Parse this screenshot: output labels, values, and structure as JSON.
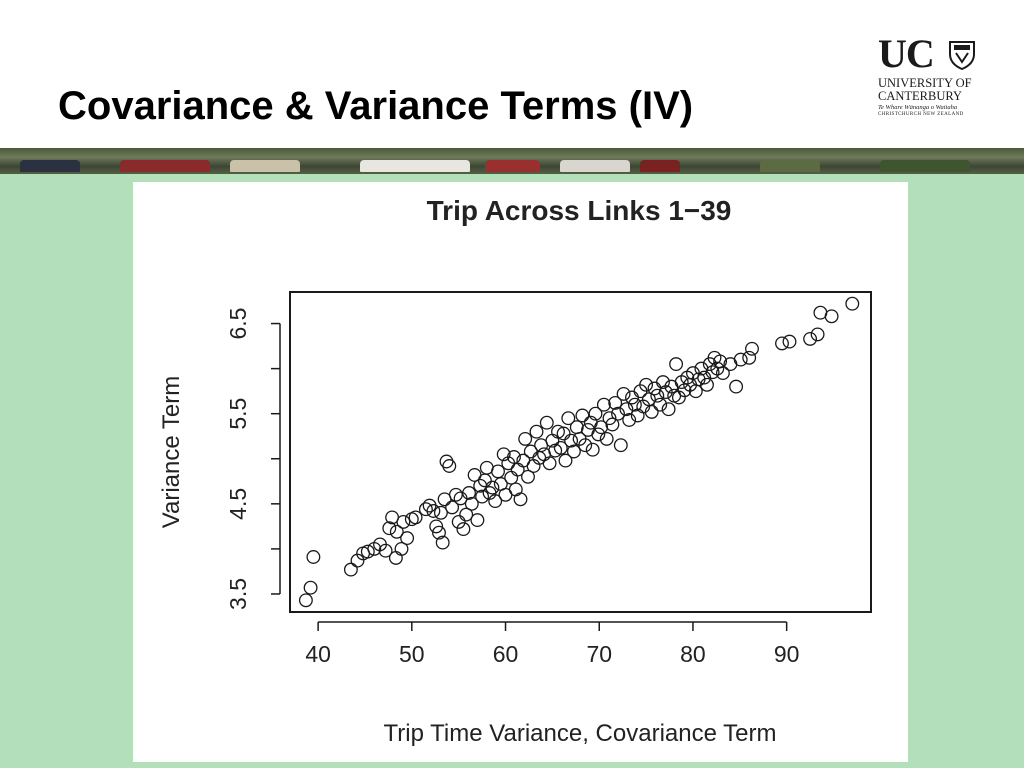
{
  "slide": {
    "title": "Covariance & Variance Terms (IV)"
  },
  "logo": {
    "short": "UC",
    "line1": "UNIVERSITY OF",
    "line2": "CANTERBURY",
    "line3": "Te Whare Wānanga o Waitaha",
    "line4": "CHRISTCHURCH NEW ZEALAND",
    "crest_icon": "university-crest-icon"
  },
  "colors": {
    "panel_background": "#b3dfbb",
    "chart_background": "#ffffff",
    "point_stroke": "#1a1a1a"
  },
  "chart_data": {
    "type": "scatter",
    "title": "Trip Across Links 1−39",
    "xlabel": "Trip Time Variance, Covariance Term",
    "ylabel": "Variance Term",
    "xlim": [
      37,
      99
    ],
    "ylim": [
      3.3,
      6.85
    ],
    "x_ticks": [
      40,
      50,
      60,
      70,
      80,
      90
    ],
    "y_ticks": [
      3.5,
      4,
      4.5,
      5,
      5.5,
      6,
      6.5
    ],
    "y_tick_labels": [
      "3.5",
      "4.5",
      "5.5",
      "6.5"
    ],
    "grid": false,
    "marker": "open-circle",
    "points": [
      [
        38.7,
        3.43
      ],
      [
        39.2,
        3.57
      ],
      [
        39.5,
        3.91
      ],
      [
        43.5,
        3.77
      ],
      [
        44.2,
        3.87
      ],
      [
        44.8,
        3.95
      ],
      [
        45.3,
        3.97
      ],
      [
        46.0,
        4.0
      ],
      [
        46.6,
        4.05
      ],
      [
        47.2,
        3.98
      ],
      [
        47.6,
        4.23
      ],
      [
        47.9,
        4.35
      ],
      [
        48.4,
        4.19
      ],
      [
        48.3,
        3.9
      ],
      [
        48.9,
        4.0
      ],
      [
        49.1,
        4.3
      ],
      [
        49.5,
        4.12
      ],
      [
        50.0,
        4.33
      ],
      [
        50.4,
        4.35
      ],
      [
        51.5,
        4.44
      ],
      [
        51.9,
        4.48
      ],
      [
        52.3,
        4.42
      ],
      [
        52.6,
        4.25
      ],
      [
        52.9,
        4.18
      ],
      [
        53.1,
        4.4
      ],
      [
        53.3,
        4.07
      ],
      [
        53.5,
        4.55
      ],
      [
        53.7,
        4.97
      ],
      [
        54.0,
        4.92
      ],
      [
        54.3,
        4.46
      ],
      [
        54.7,
        4.6
      ],
      [
        55.0,
        4.3
      ],
      [
        55.2,
        4.56
      ],
      [
        55.5,
        4.22
      ],
      [
        55.8,
        4.38
      ],
      [
        56.1,
        4.62
      ],
      [
        56.4,
        4.5
      ],
      [
        56.7,
        4.82
      ],
      [
        57.0,
        4.32
      ],
      [
        57.3,
        4.7
      ],
      [
        57.5,
        4.58
      ],
      [
        57.8,
        4.76
      ],
      [
        58.0,
        4.9
      ],
      [
        58.3,
        4.62
      ],
      [
        58.6,
        4.68
      ],
      [
        58.9,
        4.53
      ],
      [
        59.2,
        4.86
      ],
      [
        59.5,
        4.72
      ],
      [
        59.8,
        5.05
      ],
      [
        60.0,
        4.6
      ],
      [
        60.3,
        4.95
      ],
      [
        60.6,
        4.79
      ],
      [
        60.9,
        5.02
      ],
      [
        61.1,
        4.66
      ],
      [
        61.3,
        4.88
      ],
      [
        61.6,
        4.55
      ],
      [
        61.9,
        4.98
      ],
      [
        62.1,
        5.22
      ],
      [
        62.4,
        4.8
      ],
      [
        62.7,
        5.08
      ],
      [
        63.0,
        4.92
      ],
      [
        63.3,
        5.3
      ],
      [
        63.6,
        5.01
      ],
      [
        63.8,
        5.15
      ],
      [
        64.1,
        5.05
      ],
      [
        64.4,
        5.4
      ],
      [
        64.7,
        4.95
      ],
      [
        65.0,
        5.2
      ],
      [
        65.3,
        5.09
      ],
      [
        65.6,
        5.3
      ],
      [
        65.9,
        5.12
      ],
      [
        66.2,
        5.28
      ],
      [
        66.4,
        4.98
      ],
      [
        66.7,
        5.45
      ],
      [
        67.0,
        5.2
      ],
      [
        67.3,
        5.08
      ],
      [
        67.6,
        5.35
      ],
      [
        67.9,
        5.22
      ],
      [
        68.2,
        5.48
      ],
      [
        68.5,
        5.15
      ],
      [
        68.8,
        5.32
      ],
      [
        69.1,
        5.4
      ],
      [
        69.3,
        5.1
      ],
      [
        69.6,
        5.5
      ],
      [
        69.9,
        5.27
      ],
      [
        70.2,
        5.35
      ],
      [
        70.5,
        5.6
      ],
      [
        70.8,
        5.22
      ],
      [
        71.1,
        5.45
      ],
      [
        71.4,
        5.38
      ],
      [
        71.7,
        5.62
      ],
      [
        72.0,
        5.5
      ],
      [
        72.3,
        5.15
      ],
      [
        72.6,
        5.72
      ],
      [
        72.9,
        5.55
      ],
      [
        73.2,
        5.43
      ],
      [
        73.5,
        5.68
      ],
      [
        73.8,
        5.6
      ],
      [
        74.1,
        5.48
      ],
      [
        74.4,
        5.75
      ],
      [
        74.7,
        5.58
      ],
      [
        75.0,
        5.82
      ],
      [
        75.3,
        5.66
      ],
      [
        75.6,
        5.52
      ],
      [
        75.9,
        5.78
      ],
      [
        76.2,
        5.7
      ],
      [
        76.5,
        5.6
      ],
      [
        76.8,
        5.85
      ],
      [
        77.1,
        5.74
      ],
      [
        77.4,
        5.55
      ],
      [
        77.7,
        5.8
      ],
      [
        78.0,
        5.7
      ],
      [
        78.2,
        6.05
      ],
      [
        78.5,
        5.68
      ],
      [
        78.8,
        5.85
      ],
      [
        79.1,
        5.76
      ],
      [
        79.4,
        5.9
      ],
      [
        79.7,
        5.82
      ],
      [
        80.0,
        5.95
      ],
      [
        80.3,
        5.75
      ],
      [
        80.6,
        5.88
      ],
      [
        80.9,
        6.0
      ],
      [
        81.2,
        5.9
      ],
      [
        81.5,
        5.82
      ],
      [
        81.8,
        6.05
      ],
      [
        82.1,
        5.96
      ],
      [
        82.3,
        6.12
      ],
      [
        82.6,
        6.0
      ],
      [
        82.9,
        6.08
      ],
      [
        83.2,
        5.95
      ],
      [
        84.0,
        6.05
      ],
      [
        84.6,
        5.8
      ],
      [
        85.1,
        6.1
      ],
      [
        86.0,
        6.12
      ],
      [
        86.3,
        6.22
      ],
      [
        89.5,
        6.28
      ],
      [
        90.3,
        6.3
      ],
      [
        92.5,
        6.33
      ],
      [
        93.3,
        6.38
      ],
      [
        93.6,
        6.62
      ],
      [
        94.8,
        6.58
      ],
      [
        97.0,
        6.72
      ]
    ]
  }
}
